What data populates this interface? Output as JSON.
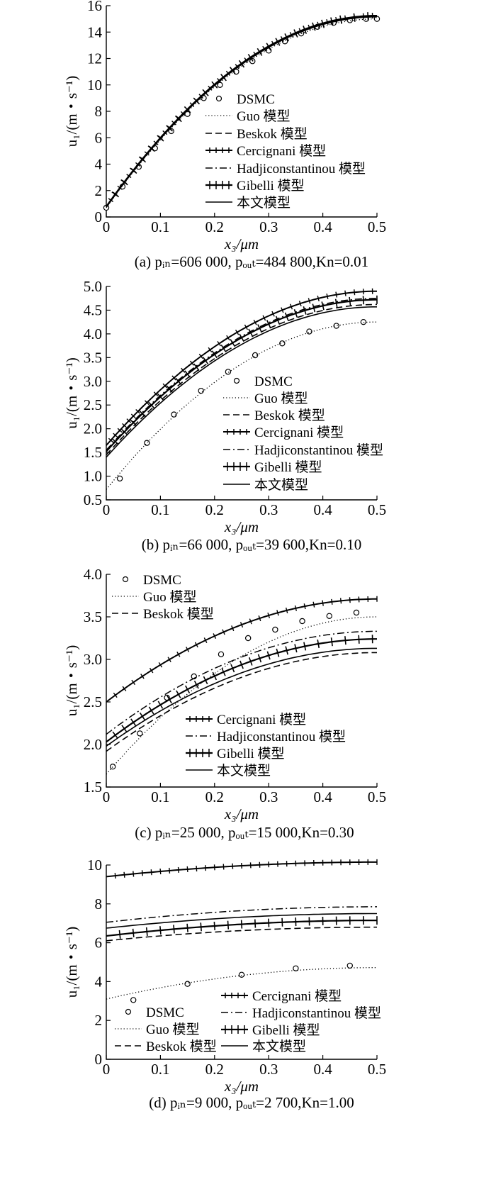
{
  "figure": {
    "legend_labels": {
      "dsmc": "DSMC",
      "guo": "Guo 模型",
      "beskok": "Beskok 模型",
      "cercignani": "Cercignani 模型",
      "hadji": "Hadjiconstantinou 模型",
      "gibelli": "Gibelli 模型",
      "present": "本文模型"
    },
    "xlabel": "x₃/μm",
    "ylabel": "u₁/(m・s⁻¹)"
  },
  "chart_data": [
    {
      "type": "line",
      "caption": "(a) pᵢₙ=606 000, pₒᵤₜ=484 800,Kn=0.01",
      "xlabel": "x₃/μm",
      "ylabel": "u₁/(m・s⁻¹)",
      "xlim": [
        0,
        0.5
      ],
      "ylim": [
        0,
        16
      ],
      "xticks": [
        "0",
        "0.1",
        "0.2",
        "0.3",
        "0.4",
        "0.5"
      ],
      "yticks": [
        "0",
        "2",
        "4",
        "6",
        "8",
        "10",
        "12",
        "14",
        "16"
      ],
      "legend_placement": "center-right",
      "series": [
        {
          "name": "DSMC",
          "style": "markers",
          "x": [
            0,
            0.03,
            0.06,
            0.09,
            0.12,
            0.15,
            0.18,
            0.21,
            0.24,
            0.27,
            0.3,
            0.33,
            0.36,
            0.39,
            0.42,
            0.45,
            0.48,
            0.5
          ],
          "y": [
            0.7,
            2.3,
            3.8,
            5.2,
            6.5,
            7.8,
            9.0,
            10.0,
            11.0,
            11.8,
            12.6,
            13.3,
            13.9,
            14.4,
            14.7,
            14.9,
            15.0,
            15.0
          ]
        },
        {
          "name": "Guo 模型",
          "style": "dotted",
          "a": 0.7,
          "b": 15.0
        },
        {
          "name": "Beskok 模型",
          "style": "dashed",
          "a": 0.75,
          "b": 15.2
        },
        {
          "name": "Cercignani 模型",
          "style": "star",
          "a": 0.8,
          "b": 15.25
        },
        {
          "name": "Hadjiconstantinou 模型",
          "style": "dashdot",
          "a": 0.78,
          "b": 15.2
        },
        {
          "name": "Gibelli 模型",
          "style": "plus",
          "a": 0.76,
          "b": 15.2
        },
        {
          "name": "本文模型",
          "style": "solid",
          "a": 0.74,
          "b": 15.15
        }
      ]
    },
    {
      "type": "line",
      "caption": "(b) pᵢₙ=66 000, pₒᵤₜ=39 600,Kn=0.10",
      "xlabel": "x₃/μm",
      "ylabel": "u₁/(m・s⁻¹)",
      "xlim": [
        0,
        0.5
      ],
      "ylim": [
        0.5,
        5.0
      ],
      "xticks": [
        "0",
        "0.1",
        "0.2",
        "0.3",
        "0.4",
        "0.5"
      ],
      "yticks": [
        "0.5",
        "1.0",
        "1.5",
        "2.0",
        "2.5",
        "3.0",
        "3.5",
        "4.0",
        "4.5",
        "5.0"
      ],
      "legend_placement": "bottom-right",
      "series": [
        {
          "name": "DSMC",
          "style": "markers",
          "x": [
            0.025,
            0.075,
            0.125,
            0.175,
            0.225,
            0.275,
            0.325,
            0.375,
            0.425,
            0.475
          ],
          "y": [
            0.95,
            1.7,
            2.3,
            2.8,
            3.2,
            3.55,
            3.8,
            4.05,
            4.17,
            4.25
          ]
        },
        {
          "name": "Guo 模型",
          "style": "dotted",
          "a": 0.72,
          "b": 4.25
        },
        {
          "name": "Beskok 模型",
          "style": "dashed",
          "a": 1.45,
          "b": 4.62
        },
        {
          "name": "Cercignani 模型",
          "style": "star",
          "a": 1.65,
          "b": 4.9
        },
        {
          "name": "Hadjiconstantinou 模型",
          "style": "dashdot",
          "a": 1.55,
          "b": 4.75
        },
        {
          "name": "Gibelli 模型",
          "style": "plus",
          "a": 1.52,
          "b": 4.72
        },
        {
          "name": "本文模型",
          "style": "solid",
          "a": 1.4,
          "b": 4.57
        }
      ]
    },
    {
      "type": "line",
      "caption": "(c) pᵢₙ=25 000, pₒᵤₜ=15 000,Kn=0.30",
      "xlabel": "x₃/μm",
      "ylabel": "u₁/(m・s⁻¹)",
      "xlim": [
        0,
        0.5
      ],
      "ylim": [
        1.5,
        4.0
      ],
      "xticks": [
        "0",
        "0.1",
        "0.2",
        "0.3",
        "0.4",
        "0.5"
      ],
      "yticks": [
        "1.5",
        "2.0",
        "2.5",
        "3.0",
        "3.5",
        "4.0"
      ],
      "legend_placement": "top-left and bottom-right",
      "series": [
        {
          "name": "DSMC",
          "style": "markers",
          "x": [
            0.012,
            0.062,
            0.112,
            0.162,
            0.212,
            0.262,
            0.312,
            0.362,
            0.412,
            0.462
          ],
          "y": [
            1.74,
            2.13,
            2.55,
            2.8,
            3.06,
            3.25,
            3.35,
            3.45,
            3.51,
            3.55
          ]
        },
        {
          "name": "Guo 模型",
          "style": "dotted",
          "a": 1.65,
          "b": 3.5
        },
        {
          "name": "Beskok 模型",
          "style": "dashed",
          "a": 1.92,
          "b": 3.08
        },
        {
          "name": "Cercignani 模型",
          "style": "star",
          "a": 2.5,
          "b": 3.71
        },
        {
          "name": "Hadjiconstantinou 模型",
          "style": "dashdot",
          "a": 2.12,
          "b": 3.33
        },
        {
          "name": "Gibelli 模型",
          "style": "plus",
          "a": 2.03,
          "b": 3.24
        },
        {
          "name": "本文模型",
          "style": "solid",
          "a": 1.98,
          "b": 3.13
        }
      ]
    },
    {
      "type": "line",
      "caption": "(d) pᵢₙ=9 000, pₒᵤₜ=2 700,Kn=1.00",
      "xlabel": "x₃/μm",
      "ylabel": "u₁/(m・s⁻¹)",
      "xlim": [
        0,
        0.5
      ],
      "ylim": [
        0,
        10
      ],
      "xticks": [
        "0",
        "0.1",
        "0.2",
        "0.3",
        "0.4",
        "0.5"
      ],
      "yticks": [
        "0",
        "2",
        "4",
        "6",
        "8",
        "10"
      ],
      "legend_placement": "bottom",
      "series": [
        {
          "name": "DSMC",
          "style": "markers",
          "x": [
            0.05,
            0.15,
            0.25,
            0.35,
            0.45
          ],
          "y": [
            3.05,
            3.88,
            4.35,
            4.68,
            4.82
          ]
        },
        {
          "name": "Guo 模型",
          "style": "dotted",
          "a": 3.1,
          "b": 4.72
        },
        {
          "name": "Beskok 模型",
          "style": "dashed",
          "a": 6.1,
          "b": 6.8
        },
        {
          "name": "Cercignani 模型",
          "style": "star",
          "a": 9.4,
          "b": 10.15
        },
        {
          "name": "Hadjiconstantinou 模型",
          "style": "dashdot",
          "a": 7.05,
          "b": 7.85
        },
        {
          "name": "Gibelli 模型",
          "style": "plus",
          "a": 6.35,
          "b": 7.15
        },
        {
          "name": "本文模型",
          "style": "solid",
          "a": 6.75,
          "b": 7.5
        }
      ]
    }
  ]
}
